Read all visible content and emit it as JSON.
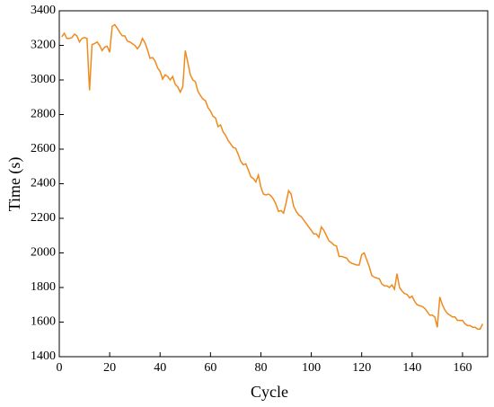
{
  "chart_data": {
    "type": "line",
    "xlabel": "Cycle",
    "ylabel": "Time (s)",
    "x": [
      1,
      2,
      3,
      4,
      5,
      6,
      7,
      8,
      9,
      10,
      11,
      12,
      13,
      14,
      15,
      16,
      17,
      18,
      19,
      20,
      21,
      22,
      23,
      24,
      25,
      26,
      27,
      28,
      29,
      30,
      31,
      32,
      33,
      34,
      35,
      36,
      37,
      38,
      39,
      40,
      41,
      42,
      43,
      44,
      45,
      46,
      47,
      48,
      49,
      50,
      51,
      52,
      53,
      54,
      55,
      56,
      57,
      58,
      59,
      60,
      61,
      62,
      63,
      64,
      65,
      66,
      67,
      68,
      69,
      70,
      71,
      72,
      73,
      74,
      75,
      76,
      77,
      78,
      79,
      80,
      81,
      82,
      83,
      84,
      85,
      86,
      87,
      88,
      89,
      90,
      91,
      92,
      93,
      94,
      95,
      96,
      97,
      98,
      99,
      100,
      101,
      102,
      103,
      104,
      105,
      106,
      107,
      108,
      109,
      110,
      111,
      112,
      113,
      114,
      115,
      116,
      117,
      118,
      119,
      120,
      121,
      122,
      123,
      124,
      125,
      126,
      127,
      128,
      129,
      130,
      131,
      132,
      133,
      134,
      135,
      136,
      137,
      138,
      139,
      140,
      141,
      142,
      143,
      144,
      145,
      146,
      147,
      148,
      149,
      150,
      151,
      152,
      153,
      154,
      155,
      156,
      157,
      158,
      159,
      160,
      161,
      162,
      163,
      164,
      165,
      166,
      167,
      168
    ],
    "series": [
      {
        "name": "Time",
        "color": "#f08a1e",
        "values": [
          3250,
          3270,
          3240,
          3240,
          3245,
          3265,
          3255,
          3220,
          3240,
          3245,
          3240,
          2940,
          3205,
          3210,
          3220,
          3200,
          3170,
          3190,
          3195,
          3160,
          3310,
          3320,
          3300,
          3275,
          3255,
          3255,
          3225,
          3220,
          3210,
          3200,
          3180,
          3200,
          3240,
          3215,
          3175,
          3125,
          3130,
          3110,
          3070,
          3050,
          3005,
          3030,
          3020,
          3000,
          3020,
          2975,
          2960,
          2930,
          2960,
          3170,
          3100,
          3030,
          3000,
          2990,
          2935,
          2910,
          2890,
          2880,
          2840,
          2820,
          2790,
          2780,
          2730,
          2740,
          2700,
          2680,
          2650,
          2630,
          2610,
          2605,
          2570,
          2530,
          2510,
          2515,
          2480,
          2440,
          2430,
          2410,
          2450,
          2380,
          2340,
          2335,
          2340,
          2330,
          2310,
          2280,
          2240,
          2245,
          2230,
          2290,
          2360,
          2340,
          2270,
          2240,
          2220,
          2210,
          2190,
          2170,
          2150,
          2130,
          2110,
          2110,
          2090,
          2150,
          2130,
          2100,
          2070,
          2060,
          2045,
          2040,
          1980,
          1980,
          1975,
          1970,
          1950,
          1940,
          1935,
          1930,
          1930,
          1990,
          2000,
          1960,
          1920,
          1870,
          1860,
          1855,
          1850,
          1820,
          1810,
          1810,
          1800,
          1815,
          1790,
          1880,
          1800,
          1780,
          1765,
          1760,
          1740,
          1750,
          1720,
          1700,
          1695,
          1690,
          1680,
          1660,
          1640,
          1640,
          1630,
          1570,
          1745,
          1700,
          1670,
          1650,
          1640,
          1630,
          1630,
          1610,
          1610,
          1610,
          1590,
          1580,
          1580,
          1570,
          1570,
          1560,
          1560,
          1590
        ]
      }
    ],
    "xlim": [
      0,
      170
    ],
    "xticks": [
      0,
      20,
      40,
      60,
      80,
      100,
      120,
      140,
      160
    ],
    "ylim": [
      1400,
      3400
    ],
    "yticks": [
      1400,
      1600,
      1800,
      2000,
      2200,
      2400,
      2600,
      2800,
      3000,
      3200,
      3400
    ]
  }
}
